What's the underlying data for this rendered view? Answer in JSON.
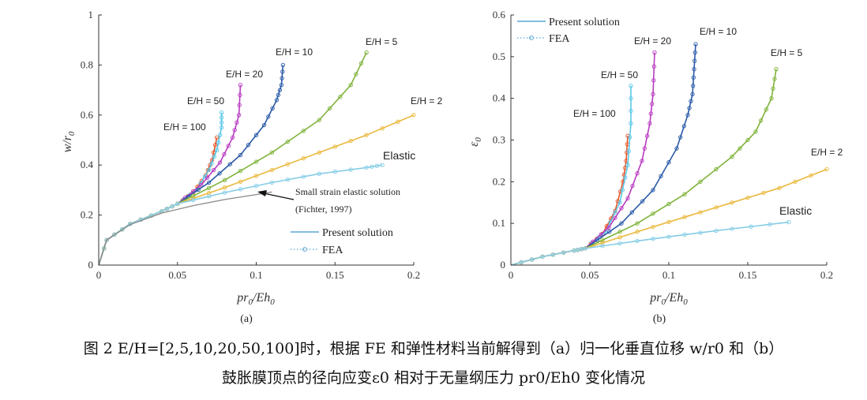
{
  "chart_data": [
    {
      "type": "line",
      "panel_label": "(a)",
      "xlabel": "pr_0/Eh_0",
      "ylabel": "w/r_0",
      "xlim": [
        0,
        0.2
      ],
      "ylim": [
        0,
        1
      ],
      "xticks": [
        "0",
        "0.05",
        "0.1",
        "0.15",
        "0.2"
      ],
      "yticks": [
        "0",
        "0.2",
        "0.4",
        "0.6",
        "0.8",
        "1"
      ],
      "xtick_values": [
        0,
        0.05,
        0.1,
        0.15,
        0.2
      ],
      "ytick_values": [
        0,
        0.2,
        0.4,
        0.6,
        0.8,
        1
      ],
      "grid": false,
      "legend": {
        "position": "bottom-right",
        "entries": [
          "Present solution",
          "FEA"
        ]
      },
      "series": [
        {
          "name": "E/H = 100",
          "color": "#e8562a",
          "points": [
            [
              0,
              0
            ],
            [
              0.005,
              0.1
            ],
            [
              0.02,
              0.165
            ],
            [
              0.04,
              0.215
            ],
            [
              0.05,
              0.245
            ],
            [
              0.06,
              0.29
            ],
            [
              0.068,
              0.36
            ],
            [
              0.072,
              0.42
            ],
            [
              0.075,
              0.51
            ]
          ]
        },
        {
          "name": "E/H = 50",
          "color": "#5bc8e8",
          "points": [
            [
              0,
              0
            ],
            [
              0.005,
              0.1
            ],
            [
              0.02,
              0.165
            ],
            [
              0.04,
              0.215
            ],
            [
              0.05,
              0.245
            ],
            [
              0.062,
              0.3
            ],
            [
              0.07,
              0.38
            ],
            [
              0.075,
              0.46
            ],
            [
              0.078,
              0.55
            ],
            [
              0.078,
              0.61
            ]
          ]
        },
        {
          "name": "E/H = 20",
          "color": "#b83ac0",
          "points": [
            [
              0,
              0
            ],
            [
              0.005,
              0.1
            ],
            [
              0.02,
              0.165
            ],
            [
              0.04,
              0.215
            ],
            [
              0.05,
              0.245
            ],
            [
              0.065,
              0.32
            ],
            [
              0.077,
              0.41
            ],
            [
              0.085,
              0.51
            ],
            [
              0.089,
              0.6
            ],
            [
              0.09,
              0.72
            ]
          ]
        },
        {
          "name": "E/H = 10",
          "color": "#2a5aa8",
          "points": [
            [
              0,
              0
            ],
            [
              0.005,
              0.1
            ],
            [
              0.02,
              0.165
            ],
            [
              0.04,
              0.215
            ],
            [
              0.05,
              0.245
            ],
            [
              0.07,
              0.33
            ],
            [
              0.09,
              0.44
            ],
            [
              0.105,
              0.56
            ],
            [
              0.113,
              0.66
            ],
            [
              0.116,
              0.72
            ],
            [
              0.117,
              0.8
            ]
          ]
        },
        {
          "name": "E/H = 5",
          "color": "#7fb33a",
          "points": [
            [
              0,
              0
            ],
            [
              0.005,
              0.1
            ],
            [
              0.02,
              0.165
            ],
            [
              0.04,
              0.215
            ],
            [
              0.05,
              0.245
            ],
            [
              0.08,
              0.34
            ],
            [
              0.11,
              0.45
            ],
            [
              0.14,
              0.58
            ],
            [
              0.16,
              0.72
            ],
            [
              0.17,
              0.85
            ]
          ]
        },
        {
          "name": "E/H = 2",
          "color": "#eab83c",
          "points": [
            [
              0,
              0
            ],
            [
              0.005,
              0.1
            ],
            [
              0.02,
              0.165
            ],
            [
              0.04,
              0.215
            ],
            [
              0.05,
              0.245
            ],
            [
              0.08,
              0.31
            ],
            [
              0.11,
              0.38
            ],
            [
              0.14,
              0.45
            ],
            [
              0.17,
              0.52
            ],
            [
              0.2,
              0.6
            ]
          ]
        },
        {
          "name": "Elastic",
          "color": "#84cde6",
          "points": [
            [
              0,
              0
            ],
            [
              0.005,
              0.1
            ],
            [
              0.02,
              0.165
            ],
            [
              0.04,
              0.215
            ],
            [
              0.05,
              0.245
            ],
            [
              0.08,
              0.29
            ],
            [
              0.11,
              0.33
            ],
            [
              0.14,
              0.365
            ],
            [
              0.17,
              0.39
            ],
            [
              0.18,
              0.4
            ]
          ]
        },
        {
          "name": "Small strain elastic solution",
          "color": "#8a8a8a",
          "points": [
            [
              0,
              0
            ],
            [
              0.005,
              0.1
            ],
            [
              0.02,
              0.162
            ],
            [
              0.04,
              0.208
            ],
            [
              0.06,
              0.238
            ],
            [
              0.08,
              0.262
            ],
            [
              0.1,
              0.282
            ],
            [
              0.11,
              0.292
            ]
          ]
        }
      ],
      "annotations": [
        "E/H = 100",
        "E/H = 50",
        "E/H = 20",
        "E/H = 10",
        "E/H = 5",
        "E/H = 2",
        "Elastic",
        "Small strain elastic solution",
        "(Fichter, 1997)"
      ]
    },
    {
      "type": "line",
      "panel_label": "(b)",
      "xlabel": "pr_0/Eh_0",
      "ylabel": "ε_0",
      "xlim": [
        0,
        0.2
      ],
      "ylim": [
        0,
        0.6
      ],
      "xticks": [
        "0",
        "0.05",
        "0.1",
        "0.15",
        "0.2"
      ],
      "yticks": [
        "0",
        "0.1",
        "0.2",
        "0.3",
        "0.4",
        "0.5",
        "0.6"
      ],
      "xtick_values": [
        0,
        0.05,
        0.1,
        0.15,
        0.2
      ],
      "ytick_values": [
        0,
        0.1,
        0.2,
        0.3,
        0.4,
        0.5,
        0.6
      ],
      "grid": false,
      "legend": {
        "position": "top-left",
        "entries": [
          "Present solution",
          "FEA"
        ]
      },
      "series": [
        {
          "name": "E/H = 100",
          "color": "#e8562a",
          "points": [
            [
              0,
              0
            ],
            [
              0.02,
              0.02
            ],
            [
              0.04,
              0.035
            ],
            [
              0.047,
              0.04
            ],
            [
              0.058,
              0.075
            ],
            [
              0.066,
              0.13
            ],
            [
              0.071,
              0.2
            ],
            [
              0.073,
              0.25
            ],
            [
              0.074,
              0.31
            ]
          ]
        },
        {
          "name": "E/H = 50",
          "color": "#5bc8e8",
          "points": [
            [
              0,
              0
            ],
            [
              0.02,
              0.02
            ],
            [
              0.04,
              0.035
            ],
            [
              0.047,
              0.04
            ],
            [
              0.06,
              0.08
            ],
            [
              0.069,
              0.15
            ],
            [
              0.074,
              0.24
            ],
            [
              0.076,
              0.34
            ],
            [
              0.076,
              0.43
            ]
          ]
        },
        {
          "name": "E/H = 20",
          "color": "#b83ac0",
          "points": [
            [
              0,
              0
            ],
            [
              0.02,
              0.02
            ],
            [
              0.04,
              0.035
            ],
            [
              0.047,
              0.04
            ],
            [
              0.062,
              0.09
            ],
            [
              0.074,
              0.16
            ],
            [
              0.083,
              0.25
            ],
            [
              0.088,
              0.34
            ],
            [
              0.09,
              0.41
            ],
            [
              0.091,
              0.51
            ]
          ]
        },
        {
          "name": "E/H = 10",
          "color": "#2a5aa8",
          "points": [
            [
              0,
              0
            ],
            [
              0.02,
              0.02
            ],
            [
              0.04,
              0.035
            ],
            [
              0.047,
              0.04
            ],
            [
              0.07,
              0.1
            ],
            [
              0.09,
              0.18
            ],
            [
              0.105,
              0.28
            ],
            [
              0.112,
              0.36
            ],
            [
              0.115,
              0.41
            ],
            [
              0.116,
              0.47
            ],
            [
              0.117,
              0.53
            ]
          ]
        },
        {
          "name": "E/H = 5",
          "color": "#7fb33a",
          "points": [
            [
              0,
              0
            ],
            [
              0.02,
              0.02
            ],
            [
              0.04,
              0.035
            ],
            [
              0.047,
              0.04
            ],
            [
              0.08,
              0.1
            ],
            [
              0.11,
              0.17
            ],
            [
              0.14,
              0.26
            ],
            [
              0.155,
              0.32
            ],
            [
              0.165,
              0.4
            ],
            [
              0.168,
              0.47
            ]
          ]
        },
        {
          "name": "E/H = 2",
          "color": "#eab83c",
          "points": [
            [
              0,
              0
            ],
            [
              0.02,
              0.02
            ],
            [
              0.04,
              0.035
            ],
            [
              0.047,
              0.04
            ],
            [
              0.08,
              0.08
            ],
            [
              0.11,
              0.115
            ],
            [
              0.14,
              0.15
            ],
            [
              0.17,
              0.185
            ],
            [
              0.2,
              0.23
            ]
          ]
        },
        {
          "name": "Elastic",
          "color": "#84cde6",
          "points": [
            [
              0,
              0
            ],
            [
              0.02,
              0.02
            ],
            [
              0.04,
              0.035
            ],
            [
              0.047,
              0.04
            ],
            [
              0.08,
              0.058
            ],
            [
              0.11,
              0.073
            ],
            [
              0.14,
              0.087
            ],
            [
              0.176,
              0.103
            ]
          ]
        }
      ],
      "annotations": [
        "E/H = 100",
        "E/H = 50",
        "E/H = 20",
        "E/H = 10",
        "E/H = 5",
        "E/H = 2",
        "Elastic"
      ]
    }
  ],
  "caption_line1": "图 2 E/H=[2,5,10,20,50,100]时，根据 FE 和弹性材料当前解得到（a）归一化垂直位移 w/r0 和（b）",
  "caption_line2": "鼓胀膜顶点的径向应变ε0  相对于无量纲压力  pr0/Eh0 变化情况",
  "colors": {
    "axis": "#333333",
    "fichter": "#8a8a8a"
  }
}
